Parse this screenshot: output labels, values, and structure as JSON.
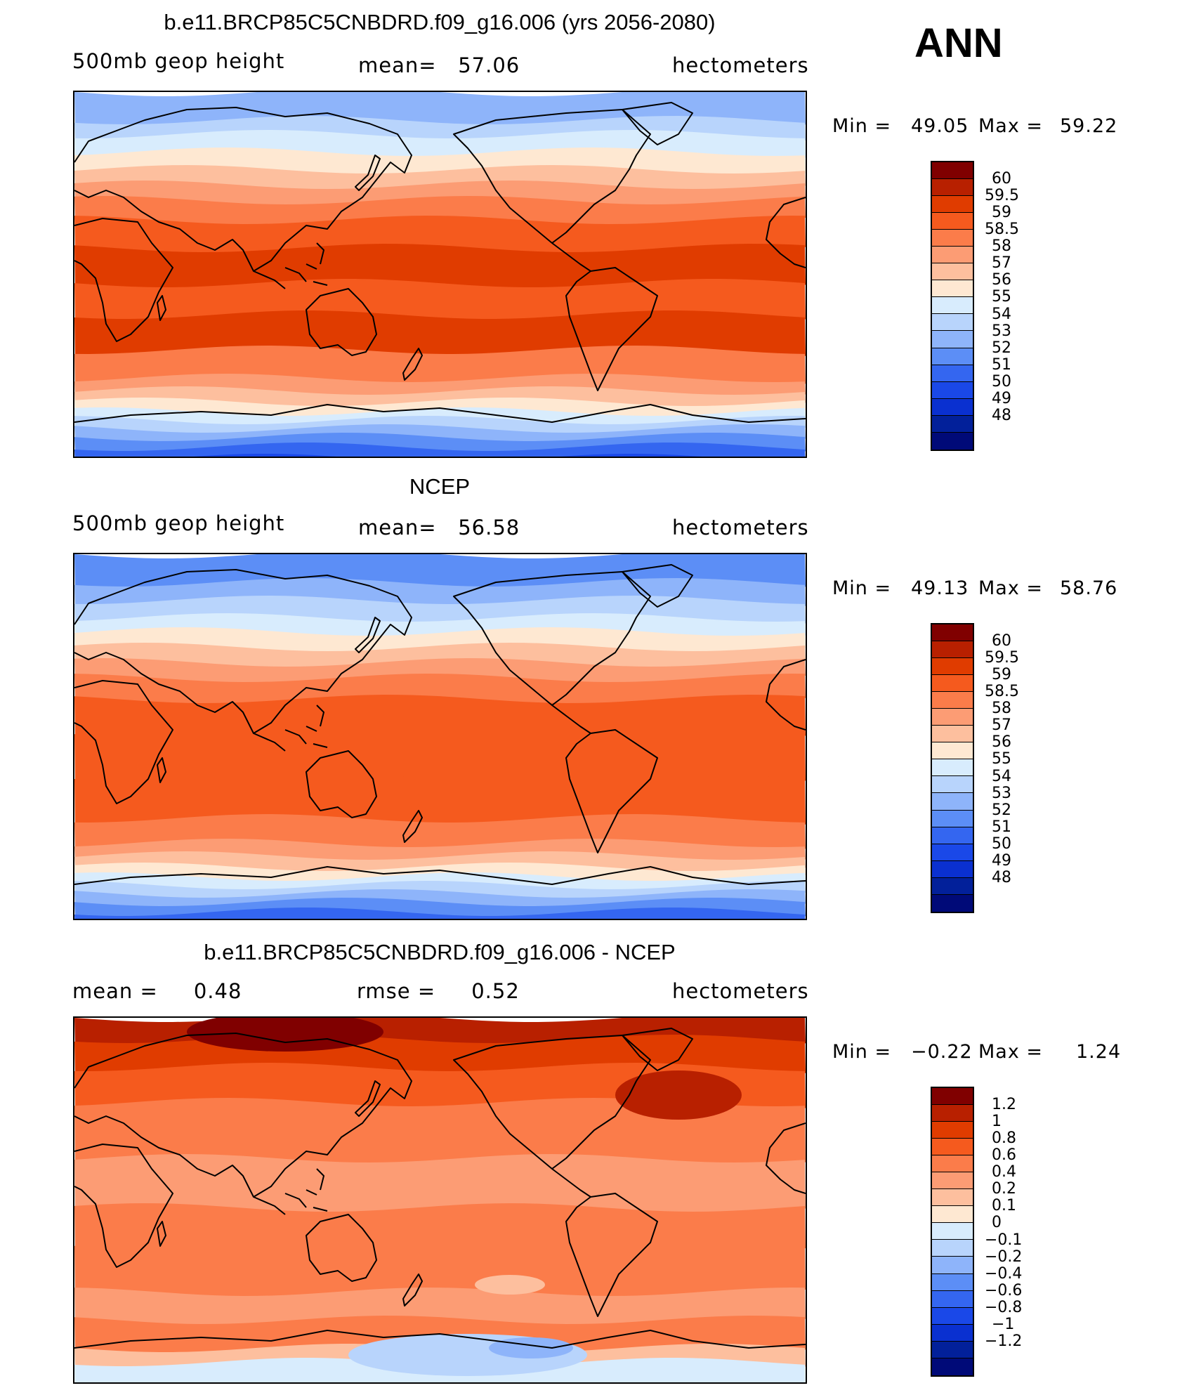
{
  "season": "ANN",
  "panels": [
    {
      "title": "b.e11.BRCP85C5CNBDRD.f09_g16.006 (yrs 2056-2080)",
      "left_label": "500mb geop height",
      "center_label": "mean=   57.06",
      "units": "hectometers",
      "min_label": "Min =",
      "min_value": "49.05",
      "max_label": "Max =",
      "max_value": "59.22",
      "type": "model",
      "colorbar": {
        "colors": [
          "#800000",
          "#b82000",
          "#e03c00",
          "#f55a1e",
          "#fb7c4a",
          "#fc9c74",
          "#fdbf9e",
          "#fee8d2",
          "#d8ecfd",
          "#b8d4fc",
          "#8eb4fa",
          "#5c8ef6",
          "#3466f0",
          "#1a48e8",
          "#0a30d0",
          "#02209a",
          "#000a78"
        ],
        "labels": [
          "60",
          "59.5",
          "59",
          "58.5",
          "58",
          "57",
          "56",
          "55",
          "54",
          "53",
          "52",
          "51",
          "50",
          "49",
          "48"
        ]
      }
    },
    {
      "title": "NCEP",
      "left_label": "500mb geop height",
      "center_label": "mean=   56.58",
      "units": "hectometers",
      "min_label": "Min =",
      "min_value": "49.13",
      "max_label": "Max =",
      "max_value": "58.76",
      "type": "obs",
      "colorbar": {
        "colors": [
          "#800000",
          "#b82000",
          "#e03c00",
          "#f55a1e",
          "#fb7c4a",
          "#fc9c74",
          "#fdbf9e",
          "#fee8d2",
          "#d8ecfd",
          "#b8d4fc",
          "#8eb4fa",
          "#5c8ef6",
          "#3466f0",
          "#1a48e8",
          "#0a30d0",
          "#02209a",
          "#000a78"
        ],
        "labels": [
          "60",
          "59.5",
          "59",
          "58.5",
          "58",
          "57",
          "56",
          "55",
          "54",
          "53",
          "52",
          "51",
          "50",
          "49",
          "48"
        ]
      }
    },
    {
      "title": "b.e11.BRCP85C5CNBDRD.f09_g16.006 - NCEP",
      "left_label": "mean =     0.48",
      "center_label": "rmse =     0.52",
      "units": "hectometers",
      "min_label": "Min =",
      "min_value": "−0.22",
      "max_label": "Max =",
      "max_value": "1.24",
      "type": "diff",
      "colorbar": {
        "colors": [
          "#800000",
          "#b82000",
          "#e03c00",
          "#f55a1e",
          "#fb7c4a",
          "#fc9c74",
          "#fdbf9e",
          "#fee8d2",
          "#d8ecfd",
          "#b8d4fc",
          "#8eb4fa",
          "#5c8ef6",
          "#3466f0",
          "#1a48e8",
          "#0a30d0",
          "#02209a",
          "#000a78"
        ],
        "labels": [
          "1.2",
          "1",
          "0.8",
          "0.6",
          "0.4",
          "0.2",
          "0.1",
          "0",
          "−0.1",
          "−0.2",
          "−0.4",
          "−0.6",
          "−0.8",
          "−1",
          "−1.2"
        ]
      }
    }
  ]
}
